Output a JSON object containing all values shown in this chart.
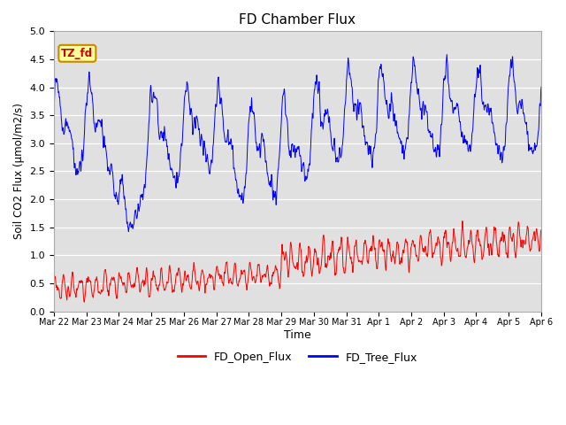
{
  "title": "FD Chamber Flux",
  "xlabel": "Time",
  "ylabel": "Soil CO2 Flux (μmol/m2/s)",
  "ylim": [
    0.0,
    5.0
  ],
  "yticks": [
    0.0,
    0.5,
    1.0,
    1.5,
    2.0,
    2.5,
    3.0,
    3.5,
    4.0,
    4.5,
    5.0
  ],
  "plot_bg_color": "#e0e0e0",
  "line_red": "#ff0000",
  "line_blue": "#0000ff",
  "legend_labels": [
    "FD_Open_Flux",
    "FD_Tree_Flux"
  ],
  "annotation_text": "TZ_fd",
  "annotation_bg": "#ffff99",
  "annotation_border": "#cc8800",
  "annotation_text_color": "#cc0000",
  "xtick_labels": [
    "Mar 22",
    "Mar 23",
    "Mar 24",
    "Mar 25",
    "Mar 26",
    "Mar 27",
    "Mar 28",
    "Mar 29",
    "Mar 30",
    "Mar 31",
    "Apr 1",
    "Apr 2",
    "Apr 3",
    "Apr 4",
    "Apr 5",
    "Apr 6"
  ],
  "num_points": 2000,
  "num_days": 15
}
